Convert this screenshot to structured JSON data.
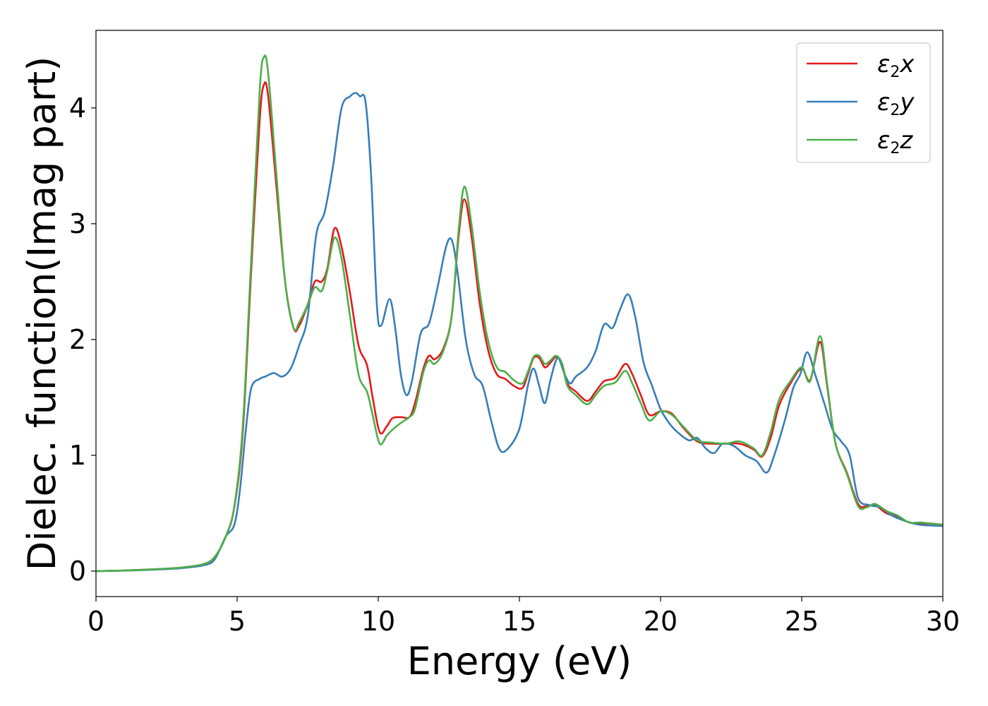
{
  "chart_data": {
    "type": "line",
    "xlabel": "Energy (eV)",
    "ylabel": "Dielec. function(Imag part)",
    "xlim": [
      0,
      30
    ],
    "ylim": [
      -0.22,
      4.67
    ],
    "xticks": [
      "0",
      "5",
      "10",
      "15",
      "20",
      "25",
      "30"
    ],
    "yticks": [
      "0",
      "1",
      "2",
      "3",
      "4"
    ],
    "grid": false,
    "legend_position": "top-right",
    "series": [
      {
        "name": "ε₂x",
        "label_main": "ε",
        "label_sub": "2",
        "label_tail": "x",
        "color": "#e41a1c",
        "points": [
          [
            0,
            0
          ],
          [
            1,
            0.005
          ],
          [
            2,
            0.015
          ],
          [
            3,
            0.03
          ],
          [
            3.8,
            0.06
          ],
          [
            4.2,
            0.12
          ],
          [
            4.6,
            0.3
          ],
          [
            4.9,
            0.55
          ],
          [
            5.2,
            1.2
          ],
          [
            5.5,
            2.6
          ],
          [
            5.8,
            3.9
          ],
          [
            5.95,
            4.2
          ],
          [
            6.1,
            4.1
          ],
          [
            6.4,
            3.3
          ],
          [
            6.7,
            2.5
          ],
          [
            7.0,
            2.1
          ],
          [
            7.2,
            2.12
          ],
          [
            7.5,
            2.3
          ],
          [
            7.75,
            2.5
          ],
          [
            8.0,
            2.5
          ],
          [
            8.2,
            2.62
          ],
          [
            8.45,
            2.96
          ],
          [
            8.7,
            2.8
          ],
          [
            9.0,
            2.4
          ],
          [
            9.3,
            1.95
          ],
          [
            9.6,
            1.78
          ],
          [
            9.8,
            1.5
          ],
          [
            10.05,
            1.2
          ],
          [
            10.3,
            1.25
          ],
          [
            10.5,
            1.32
          ],
          [
            10.8,
            1.33
          ],
          [
            11.1,
            1.33
          ],
          [
            11.3,
            1.45
          ],
          [
            11.6,
            1.75
          ],
          [
            11.8,
            1.86
          ],
          [
            12.0,
            1.83
          ],
          [
            12.3,
            1.92
          ],
          [
            12.6,
            2.2
          ],
          [
            12.85,
            2.9
          ],
          [
            13.05,
            3.21
          ],
          [
            13.3,
            2.9
          ],
          [
            13.6,
            2.3
          ],
          [
            13.9,
            1.9
          ],
          [
            14.2,
            1.7
          ],
          [
            14.5,
            1.66
          ],
          [
            14.8,
            1.6
          ],
          [
            15.1,
            1.58
          ],
          [
            15.3,
            1.7
          ],
          [
            15.5,
            1.84
          ],
          [
            15.7,
            1.84
          ],
          [
            15.9,
            1.76
          ],
          [
            16.1,
            1.8
          ],
          [
            16.3,
            1.85
          ],
          [
            16.5,
            1.8
          ],
          [
            16.7,
            1.62
          ],
          [
            17.0,
            1.55
          ],
          [
            17.4,
            1.47
          ],
          [
            17.7,
            1.55
          ],
          [
            18.0,
            1.64
          ],
          [
            18.4,
            1.67
          ],
          [
            18.75,
            1.79
          ],
          [
            19.0,
            1.7
          ],
          [
            19.3,
            1.52
          ],
          [
            19.6,
            1.35
          ],
          [
            20.0,
            1.38
          ],
          [
            20.4,
            1.36
          ],
          [
            20.8,
            1.24
          ],
          [
            21.3,
            1.12
          ],
          [
            21.8,
            1.1
          ],
          [
            22.3,
            1.1
          ],
          [
            22.8,
            1.1
          ],
          [
            23.3,
            1.05
          ],
          [
            23.6,
            0.99
          ],
          [
            23.9,
            1.15
          ],
          [
            24.2,
            1.43
          ],
          [
            24.6,
            1.62
          ],
          [
            25.0,
            1.75
          ],
          [
            25.3,
            1.65
          ],
          [
            25.65,
            1.98
          ],
          [
            25.9,
            1.6
          ],
          [
            26.2,
            1.1
          ],
          [
            26.6,
            0.85
          ],
          [
            27.0,
            0.58
          ],
          [
            27.3,
            0.56
          ],
          [
            27.6,
            0.57
          ],
          [
            28.0,
            0.5
          ],
          [
            28.4,
            0.47
          ],
          [
            28.8,
            0.42
          ],
          [
            29.2,
            0.41
          ],
          [
            29.6,
            0.41
          ],
          [
            30,
            0.4
          ]
        ]
      },
      {
        "name": "ε₂y",
        "label_main": "ε",
        "label_sub": "2",
        "label_tail": "y",
        "color": "#377eb8",
        "points": [
          [
            0,
            0
          ],
          [
            1,
            0.004
          ],
          [
            2,
            0.012
          ],
          [
            3,
            0.025
          ],
          [
            3.8,
            0.05
          ],
          [
            4.2,
            0.1
          ],
          [
            4.6,
            0.3
          ],
          [
            4.9,
            0.4
          ],
          [
            5.1,
            0.7
          ],
          [
            5.3,
            1.2
          ],
          [
            5.5,
            1.58
          ],
          [
            5.8,
            1.66
          ],
          [
            6.0,
            1.68
          ],
          [
            6.3,
            1.71
          ],
          [
            6.6,
            1.68
          ],
          [
            6.9,
            1.75
          ],
          [
            7.2,
            1.95
          ],
          [
            7.5,
            2.2
          ],
          [
            7.8,
            2.9
          ],
          [
            8.1,
            3.1
          ],
          [
            8.4,
            3.5
          ],
          [
            8.7,
            4.0
          ],
          [
            9.0,
            4.1
          ],
          [
            9.2,
            4.13
          ],
          [
            9.35,
            4.1
          ],
          [
            9.55,
            4.05
          ],
          [
            9.75,
            3.4
          ],
          [
            9.95,
            2.3
          ],
          [
            10.1,
            2.12
          ],
          [
            10.4,
            2.35
          ],
          [
            10.6,
            2.1
          ],
          [
            10.8,
            1.7
          ],
          [
            11.0,
            1.52
          ],
          [
            11.2,
            1.65
          ],
          [
            11.5,
            2.05
          ],
          [
            11.8,
            2.14
          ],
          [
            12.1,
            2.45
          ],
          [
            12.4,
            2.8
          ],
          [
            12.6,
            2.86
          ],
          [
            12.8,
            2.6
          ],
          [
            13.1,
            2.0
          ],
          [
            13.4,
            1.7
          ],
          [
            13.7,
            1.6
          ],
          [
            14.0,
            1.3
          ],
          [
            14.3,
            1.05
          ],
          [
            14.6,
            1.06
          ],
          [
            15.0,
            1.23
          ],
          [
            15.3,
            1.6
          ],
          [
            15.5,
            1.75
          ],
          [
            15.7,
            1.6
          ],
          [
            15.9,
            1.45
          ],
          [
            16.1,
            1.65
          ],
          [
            16.35,
            1.84
          ],
          [
            16.6,
            1.7
          ],
          [
            16.8,
            1.62
          ],
          [
            17.0,
            1.68
          ],
          [
            17.4,
            1.76
          ],
          [
            17.7,
            1.9
          ],
          [
            18.0,
            2.13
          ],
          [
            18.3,
            2.1
          ],
          [
            18.55,
            2.25
          ],
          [
            18.85,
            2.39
          ],
          [
            19.1,
            2.2
          ],
          [
            19.4,
            1.8
          ],
          [
            19.7,
            1.6
          ],
          [
            20.0,
            1.4
          ],
          [
            20.3,
            1.28
          ],
          [
            20.6,
            1.2
          ],
          [
            21.0,
            1.13
          ],
          [
            21.3,
            1.15
          ],
          [
            21.6,
            1.06
          ],
          [
            21.9,
            1.02
          ],
          [
            22.2,
            1.1
          ],
          [
            22.6,
            1.08
          ],
          [
            23.0,
            1.0
          ],
          [
            23.4,
            0.95
          ],
          [
            23.75,
            0.85
          ],
          [
            24.0,
            0.98
          ],
          [
            24.4,
            1.3
          ],
          [
            24.7,
            1.58
          ],
          [
            24.95,
            1.7
          ],
          [
            25.2,
            1.89
          ],
          [
            25.5,
            1.68
          ],
          [
            25.8,
            1.45
          ],
          [
            26.1,
            1.22
          ],
          [
            26.4,
            1.12
          ],
          [
            26.7,
            1.0
          ],
          [
            27.0,
            0.63
          ],
          [
            27.4,
            0.57
          ],
          [
            27.8,
            0.55
          ],
          [
            28.2,
            0.48
          ],
          [
            28.7,
            0.43
          ],
          [
            29.2,
            0.4
          ],
          [
            30,
            0.39
          ]
        ]
      },
      {
        "name": "ε₂z",
        "label_main": "ε",
        "label_sub": "2",
        "label_tail": "z",
        "color": "#4daf4a",
        "points": [
          [
            0,
            0
          ],
          [
            1,
            0.005
          ],
          [
            2,
            0.015
          ],
          [
            3,
            0.03
          ],
          [
            3.8,
            0.06
          ],
          [
            4.2,
            0.12
          ],
          [
            4.6,
            0.3
          ],
          [
            4.9,
            0.56
          ],
          [
            5.2,
            1.25
          ],
          [
            5.5,
            2.7
          ],
          [
            5.8,
            4.15
          ],
          [
            5.95,
            4.44
          ],
          [
            6.1,
            4.3
          ],
          [
            6.4,
            3.4
          ],
          [
            6.7,
            2.5
          ],
          [
            7.0,
            2.1
          ],
          [
            7.2,
            2.15
          ],
          [
            7.5,
            2.3
          ],
          [
            7.75,
            2.45
          ],
          [
            8.0,
            2.42
          ],
          [
            8.2,
            2.6
          ],
          [
            8.45,
            2.88
          ],
          [
            8.7,
            2.7
          ],
          [
            9.0,
            2.2
          ],
          [
            9.3,
            1.7
          ],
          [
            9.6,
            1.55
          ],
          [
            9.8,
            1.35
          ],
          [
            10.05,
            1.1
          ],
          [
            10.3,
            1.17
          ],
          [
            10.5,
            1.22
          ],
          [
            10.8,
            1.28
          ],
          [
            11.1,
            1.33
          ],
          [
            11.3,
            1.4
          ],
          [
            11.6,
            1.72
          ],
          [
            11.8,
            1.82
          ],
          [
            12.0,
            1.79
          ],
          [
            12.3,
            1.9
          ],
          [
            12.6,
            2.2
          ],
          [
            12.85,
            2.95
          ],
          [
            13.05,
            3.32
          ],
          [
            13.3,
            3.0
          ],
          [
            13.6,
            2.4
          ],
          [
            13.9,
            1.98
          ],
          [
            14.2,
            1.76
          ],
          [
            14.5,
            1.72
          ],
          [
            14.8,
            1.65
          ],
          [
            15.1,
            1.62
          ],
          [
            15.3,
            1.72
          ],
          [
            15.5,
            1.85
          ],
          [
            15.7,
            1.86
          ],
          [
            15.9,
            1.79
          ],
          [
            16.1,
            1.82
          ],
          [
            16.3,
            1.86
          ],
          [
            16.5,
            1.8
          ],
          [
            16.7,
            1.6
          ],
          [
            17.0,
            1.52
          ],
          [
            17.4,
            1.44
          ],
          [
            17.7,
            1.52
          ],
          [
            18.0,
            1.6
          ],
          [
            18.4,
            1.63
          ],
          [
            18.75,
            1.73
          ],
          [
            19.0,
            1.62
          ],
          [
            19.3,
            1.45
          ],
          [
            19.6,
            1.3
          ],
          [
            20.0,
            1.38
          ],
          [
            20.4,
            1.35
          ],
          [
            20.8,
            1.25
          ],
          [
            21.3,
            1.13
          ],
          [
            21.8,
            1.11
          ],
          [
            22.3,
            1.1
          ],
          [
            22.8,
            1.12
          ],
          [
            23.3,
            1.06
          ],
          [
            23.6,
            1.0
          ],
          [
            23.9,
            1.2
          ],
          [
            24.2,
            1.48
          ],
          [
            24.6,
            1.64
          ],
          [
            25.0,
            1.76
          ],
          [
            25.3,
            1.64
          ],
          [
            25.65,
            2.03
          ],
          [
            25.9,
            1.62
          ],
          [
            26.2,
            1.1
          ],
          [
            26.6,
            0.84
          ],
          [
            27.0,
            0.56
          ],
          [
            27.3,
            0.55
          ],
          [
            27.6,
            0.58
          ],
          [
            28.0,
            0.52
          ],
          [
            28.4,
            0.48
          ],
          [
            28.8,
            0.42
          ],
          [
            29.2,
            0.42
          ],
          [
            29.6,
            0.41
          ],
          [
            30,
            0.4
          ]
        ]
      }
    ]
  }
}
